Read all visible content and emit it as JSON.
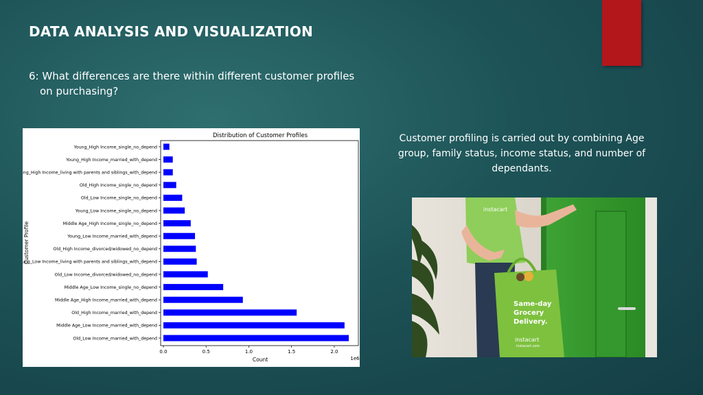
{
  "slide": {
    "title": "DATA ANALYSIS AND VISUALIZATION",
    "question_line1": "6: What differences are there within different customer profiles",
    "question_line2": "on purchasing?",
    "caption": "Customer profiling is carried out by combining Age group, family status, income status, and number of dependants."
  },
  "photo": {
    "shirt_logo": "instacart",
    "bag_text_line1": "Same-day",
    "bag_text_line2": "Grocery",
    "bag_text_line3": "Delivery.",
    "bag_brand": "instacart",
    "bag_brand_sub": "instacart.com"
  },
  "colors": {
    "accent_red": "#b3161b",
    "bar": "#0000ff",
    "background": "#1d5357"
  },
  "chart_data": {
    "type": "bar",
    "orientation": "horizontal",
    "title": "Distribution of Customer Profiles",
    "xlabel": "Count",
    "ylabel": "Customer Profile",
    "x_offset_label": "1e6",
    "xlim": [
      0,
      2.25
    ],
    "xticks": [
      0.0,
      0.5,
      1.0,
      1.5,
      2.0
    ],
    "xtick_labels": [
      "0.0",
      "0.5",
      "1.0",
      "1.5",
      "2.0"
    ],
    "categories": [
      "Young_High Income_single_no_depend",
      "Young_High Income_married_with_depend",
      "Young_High Income_living with parents and siblings_with_depend",
      "Old_High Income_single_no_depend",
      "Old_Low Income_single_no_depend",
      "Young_Low Income_single_no_depend",
      "Middle Age_High Income_single_no_depend",
      "Young_Low Income_married_with_depend",
      "Old_High Income_divorced/widowed_no_depend",
      "Young_Low Income_living with parents and siblings_with_depend",
      "Old_Low Income_divorced/widowed_no_depend",
      "Middle Age_Low Income_single_no_depend",
      "Middle Age_High Income_married_with_depend",
      "Old_High Income_married_with_depend",
      "Middle Age_Low Income_married_with_depend",
      "Old_Low Income_married_with_depend"
    ],
    "values": [
      0.07,
      0.11,
      0.11,
      0.15,
      0.22,
      0.25,
      0.32,
      0.37,
      0.38,
      0.39,
      0.52,
      0.7,
      0.93,
      1.56,
      2.12,
      2.17
    ],
    "grid": false
  }
}
